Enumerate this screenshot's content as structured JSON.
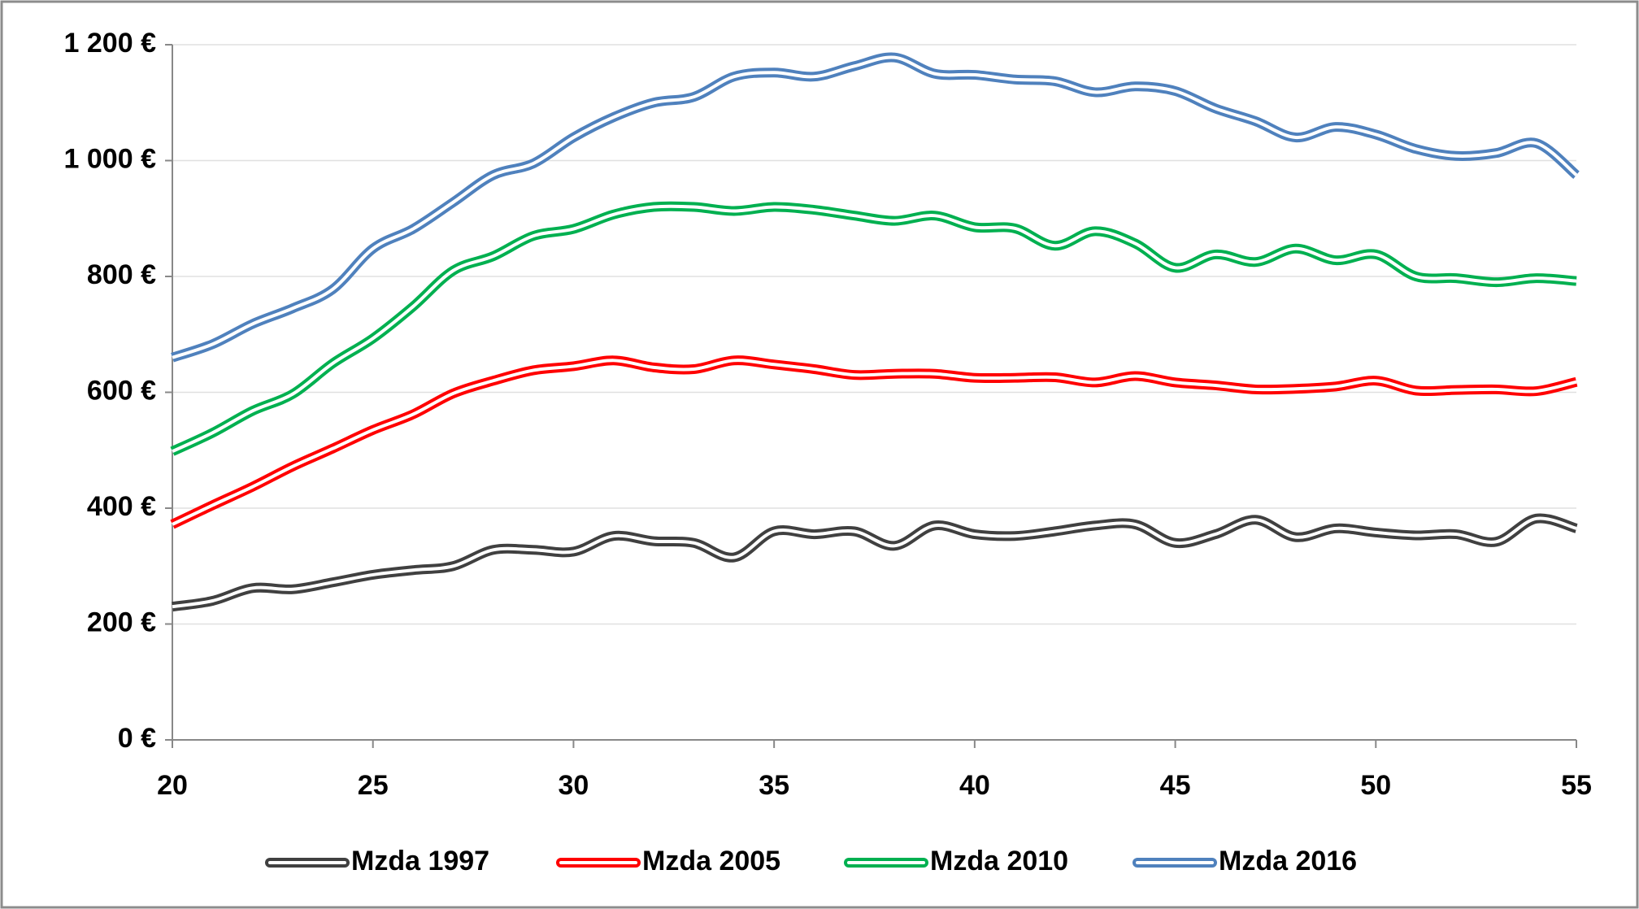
{
  "chart_data": {
    "type": "line",
    "x": [
      20,
      21,
      22,
      23,
      24,
      25,
      26,
      27,
      28,
      29,
      30,
      31,
      32,
      33,
      34,
      35,
      36,
      37,
      38,
      39,
      40,
      41,
      42,
      43,
      44,
      45,
      46,
      47,
      48,
      49,
      50,
      51,
      52,
      53,
      54,
      55
    ],
    "series": [
      {
        "name": "Mzda 1997",
        "color": "#404040",
        "values": [
          230,
          240,
          262,
          260,
          272,
          285,
          293,
          300,
          328,
          328,
          325,
          352,
          343,
          340,
          315,
          360,
          355,
          360,
          335,
          370,
          355,
          352,
          360,
          370,
          372,
          340,
          355,
          380,
          350,
          365,
          358,
          353,
          355,
          342,
          382,
          365
        ]
      },
      {
        "name": "Mzda 2005",
        "color": "#ff0000",
        "values": [
          372,
          405,
          437,
          472,
          503,
          535,
          562,
          598,
          620,
          638,
          645,
          655,
          643,
          640,
          655,
          648,
          640,
          630,
          632,
          632,
          625,
          625,
          626,
          617,
          628,
          617,
          612,
          605,
          606,
          610,
          620,
          603,
          604,
          605,
          602,
          618
        ]
      },
      {
        "name": "Mzda 2010",
        "color": "#00b050",
        "values": [
          498,
          530,
          568,
          597,
          650,
          693,
          748,
          810,
          835,
          870,
          882,
          907,
          920,
          920,
          913,
          920,
          915,
          905,
          896,
          905,
          885,
          883,
          853,
          878,
          857,
          815,
          838,
          825,
          848,
          828,
          838,
          800,
          797,
          790,
          797,
          792
        ]
      },
      {
        "name": "Mzda 2016",
        "color": "#4f81bd",
        "values": [
          660,
          683,
          718,
          745,
          778,
          848,
          882,
          928,
          975,
          995,
          1040,
          1075,
          1100,
          1110,
          1145,
          1152,
          1145,
          1163,
          1178,
          1150,
          1148,
          1140,
          1137,
          1118,
          1128,
          1120,
          1090,
          1068,
          1040,
          1058,
          1045,
          1020,
          1008,
          1013,
          1030,
          975
        ]
      }
    ],
    "xlim": [
      20,
      55
    ],
    "xticks": [
      20,
      25,
      30,
      35,
      40,
      45,
      50,
      55
    ],
    "ylim": [
      0,
      1200
    ],
    "yticks": [
      {
        "value": 0,
        "label": "0 €"
      },
      {
        "value": 200,
        "label": "200 €"
      },
      {
        "value": 400,
        "label": "400 €"
      },
      {
        "value": 600,
        "label": "600 €"
      },
      {
        "value": 800,
        "label": "800 €"
      },
      {
        "value": 1000,
        "label": "1 000 €"
      },
      {
        "value": 1200,
        "label": "1 200 €"
      }
    ],
    "grid": true,
    "legend": "bottom"
  }
}
